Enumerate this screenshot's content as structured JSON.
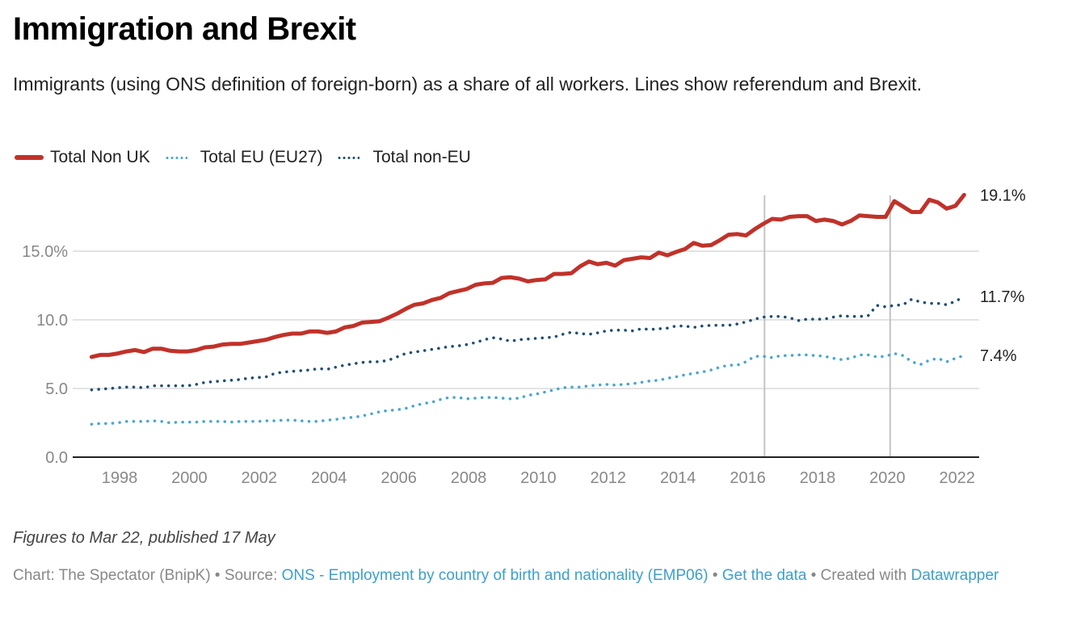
{
  "header": {
    "title": "Immigration and Brexit",
    "subtitle": "Immigrants (using ONS definition of foreign-born) as a share of all workers. Lines show referendum and Brexit."
  },
  "legend": [
    {
      "label": "Total Non UK",
      "color": "#c0322a",
      "style": "solid"
    },
    {
      "label": "Total EU (EU27)",
      "color": "#47a6d4",
      "style": "dotted"
    },
    {
      "label": "Total non-EU",
      "color": "#1f4e73",
      "style": "dotted"
    }
  ],
  "chart_data": {
    "type": "line",
    "title": "Immigration and Brexit",
    "xlabel": "",
    "ylabel": "",
    "xlim": [
      1997.0,
      2022.35
    ],
    "ylim": [
      0,
      19.5
    ],
    "grid": true,
    "legend_position": "top-left",
    "y_ticks": [
      {
        "value": 0,
        "label": "0.0"
      },
      {
        "value": 5,
        "label": "5.0"
      },
      {
        "value": 10,
        "label": "10.0"
      },
      {
        "value": 15,
        "label": "15.0%"
      }
    ],
    "x_ticks": [
      {
        "value": 1998,
        "label": "1998"
      },
      {
        "value": 2000,
        "label": "2000"
      },
      {
        "value": 2002,
        "label": "2002"
      },
      {
        "value": 2004,
        "label": "2004"
      },
      {
        "value": 2006,
        "label": "2006"
      },
      {
        "value": 2008,
        "label": "2008"
      },
      {
        "value": 2010,
        "label": "2010"
      },
      {
        "value": 2012,
        "label": "2012"
      },
      {
        "value": 2014,
        "label": "2014"
      },
      {
        "value": 2016,
        "label": "2016"
      },
      {
        "value": 2018,
        "label": "2018"
      },
      {
        "value": 2020,
        "label": "2020"
      },
      {
        "value": 2022,
        "label": "2022"
      }
    ],
    "reference_lines": [
      {
        "x": 2016.48,
        "label": "Referendum"
      },
      {
        "x": 2020.08,
        "label": "Brexit"
      }
    ],
    "x_start": 1997.2,
    "x_step": 0.25,
    "series": [
      {
        "name": "Total Non UK",
        "color": "#c0322a",
        "style": "solid",
        "end_label": "19.1%",
        "values": [
          7.3,
          7.45,
          7.45,
          7.55,
          7.7,
          7.8,
          7.65,
          7.9,
          7.9,
          7.75,
          7.7,
          7.7,
          7.8,
          8.0,
          8.05,
          8.2,
          8.25,
          8.25,
          8.35,
          8.45,
          8.55,
          8.75,
          8.9,
          9.0,
          9.0,
          9.15,
          9.15,
          9.05,
          9.15,
          9.45,
          9.55,
          9.8,
          9.85,
          9.9,
          10.15,
          10.45,
          10.8,
          11.1,
          11.2,
          11.45,
          11.6,
          11.95,
          12.1,
          12.25,
          12.55,
          12.65,
          12.7,
          13.05,
          13.1,
          13.0,
          12.8,
          12.9,
          12.95,
          13.35,
          13.35,
          13.4,
          13.9,
          14.25,
          14.05,
          14.15,
          13.95,
          14.35,
          14.45,
          14.55,
          14.5,
          14.9,
          14.7,
          14.95,
          15.15,
          15.6,
          15.4,
          15.45,
          15.8,
          16.2,
          16.25,
          16.15,
          16.6,
          17.0,
          17.35,
          17.3,
          17.5,
          17.55,
          17.55,
          17.2,
          17.3,
          17.2,
          16.95,
          17.2,
          17.6,
          17.55,
          17.5,
          17.5,
          18.65,
          18.25,
          17.85,
          17.85,
          18.75,
          18.55,
          18.1,
          18.3,
          19.1
        ]
      },
      {
        "name": "Total EU (EU27)",
        "color": "#47a6d4",
        "style": "dotted",
        "end_label": "7.4%",
        "values": [
          2.4,
          2.45,
          2.45,
          2.5,
          2.6,
          2.6,
          2.6,
          2.65,
          2.6,
          2.5,
          2.55,
          2.55,
          2.55,
          2.6,
          2.6,
          2.6,
          2.55,
          2.6,
          2.6,
          2.6,
          2.65,
          2.65,
          2.7,
          2.7,
          2.65,
          2.6,
          2.6,
          2.7,
          2.75,
          2.85,
          2.9,
          3.0,
          3.15,
          3.3,
          3.4,
          3.45,
          3.55,
          3.75,
          3.9,
          4.0,
          4.2,
          4.35,
          4.35,
          4.25,
          4.3,
          4.35,
          4.35,
          4.3,
          4.25,
          4.3,
          4.5,
          4.6,
          4.75,
          4.9,
          5.05,
          5.1,
          5.1,
          5.2,
          5.25,
          5.3,
          5.25,
          5.3,
          5.35,
          5.45,
          5.55,
          5.6,
          5.75,
          5.85,
          6.0,
          6.1,
          6.2,
          6.35,
          6.55,
          6.7,
          6.7,
          6.95,
          7.35,
          7.35,
          7.25,
          7.4,
          7.4,
          7.45,
          7.45,
          7.4,
          7.35,
          7.2,
          7.1,
          7.2,
          7.45,
          7.45,
          7.3,
          7.35,
          7.55,
          7.4,
          6.95,
          6.75,
          7.05,
          7.2,
          6.95,
          7.2,
          7.4
        ]
      },
      {
        "name": "Total non-EU",
        "color": "#1f4e73",
        "style": "dotted",
        "end_label": "11.7%",
        "values": [
          4.9,
          4.95,
          5.0,
          5.05,
          5.1,
          5.1,
          5.05,
          5.2,
          5.2,
          5.2,
          5.2,
          5.2,
          5.3,
          5.45,
          5.5,
          5.55,
          5.6,
          5.65,
          5.75,
          5.8,
          5.85,
          6.1,
          6.2,
          6.25,
          6.3,
          6.35,
          6.45,
          6.4,
          6.55,
          6.7,
          6.8,
          6.9,
          6.95,
          6.95,
          7.05,
          7.3,
          7.55,
          7.65,
          7.75,
          7.85,
          7.95,
          8.05,
          8.1,
          8.2,
          8.35,
          8.55,
          8.7,
          8.6,
          8.45,
          8.55,
          8.6,
          8.65,
          8.7,
          8.75,
          8.95,
          9.1,
          9.0,
          8.95,
          9.05,
          9.2,
          9.25,
          9.25,
          9.2,
          9.35,
          9.3,
          9.35,
          9.4,
          9.55,
          9.55,
          9.45,
          9.55,
          9.6,
          9.6,
          9.6,
          9.7,
          9.85,
          10.05,
          10.2,
          10.25,
          10.25,
          10.15,
          9.95,
          10.05,
          10.05,
          10.05,
          10.2,
          10.3,
          10.25,
          10.25,
          10.3,
          11.05,
          10.95,
          11.05,
          11.1,
          11.5,
          11.3,
          11.2,
          11.2,
          11.1,
          11.35,
          11.7
        ]
      }
    ]
  },
  "note": "Figures to Mar 22, published 17 May",
  "footer": {
    "chart_prefix": "Chart: The Spectator (BnipK) • Source: ",
    "source_link": "ONS - Employment by country of birth and nationality (EMP06)",
    "sep1": " • ",
    "get_data_link": "Get the data",
    "created_with": " • Created with ",
    "datawrapper_link": "Datawrapper"
  }
}
